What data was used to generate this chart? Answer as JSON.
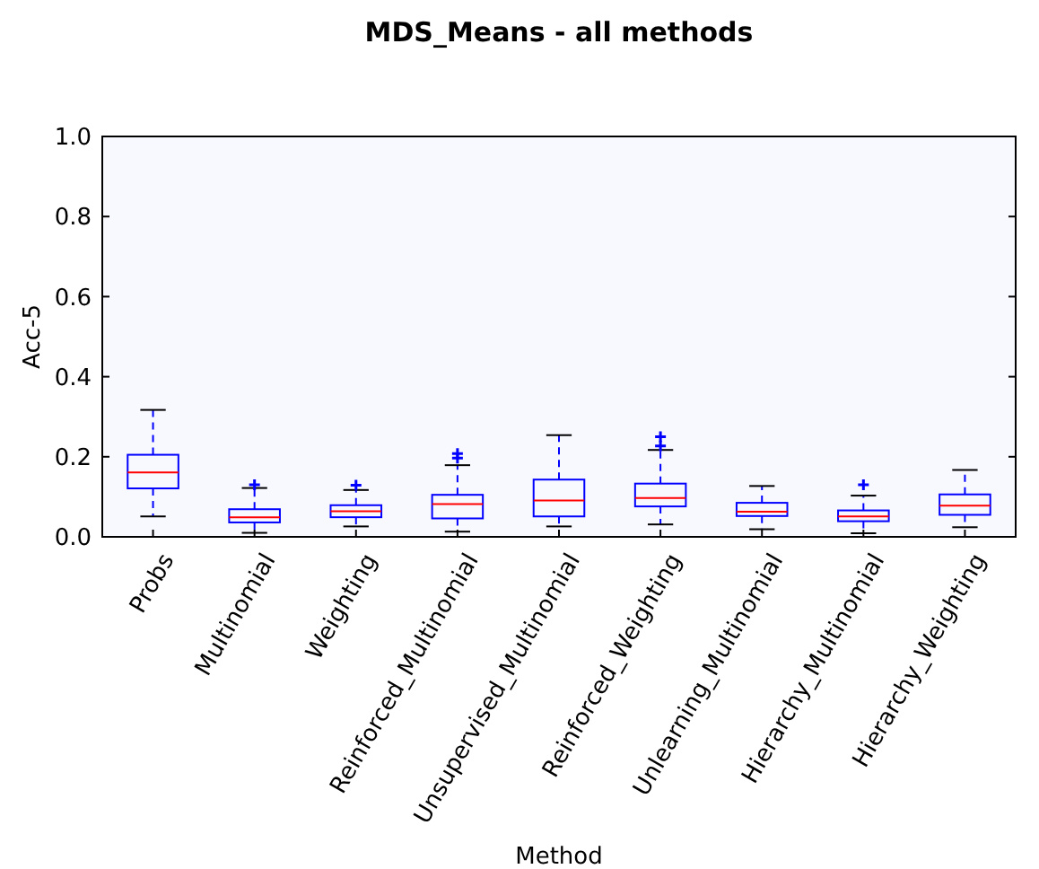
{
  "chart_data": {
    "type": "box",
    "title": "MDS_Means - all methods",
    "xlabel": "Method",
    "ylabel": "Acc-5",
    "categories": [
      "Probs",
      "Multinomial",
      "Weighting",
      "Reinforced_Multinomial",
      "Unsupervised_Multinomial",
      "Reinforced_Weighting",
      "Unlearning_Multinomial",
      "Hierarchy_Multinomial",
      "Hierarchy_Weighting"
    ],
    "boxes": [
      {
        "low": 0.051,
        "q1": 0.121,
        "median": 0.161,
        "q3": 0.205,
        "high": 0.317
      },
      {
        "low": 0.01,
        "q1": 0.036,
        "median": 0.049,
        "q3": 0.069,
        "high": 0.122,
        "outliers": [
          0.13
        ]
      },
      {
        "low": 0.026,
        "q1": 0.049,
        "median": 0.064,
        "q3": 0.079,
        "high": 0.117,
        "outliers": [
          0.129
        ]
      },
      {
        "low": 0.013,
        "q1": 0.046,
        "median": 0.082,
        "q3": 0.105,
        "high": 0.179,
        "outliers": [
          0.197,
          0.208
        ]
      },
      {
        "low": 0.026,
        "q1": 0.051,
        "median": 0.091,
        "q3": 0.143,
        "high": 0.254
      },
      {
        "low": 0.031,
        "q1": 0.076,
        "median": 0.097,
        "q3": 0.133,
        "high": 0.217,
        "outliers": [
          0.227,
          0.25
        ]
      },
      {
        "low": 0.019,
        "q1": 0.052,
        "median": 0.063,
        "q3": 0.085,
        "high": 0.127
      },
      {
        "low": 0.009,
        "q1": 0.039,
        "median": 0.051,
        "q3": 0.066,
        "high": 0.103,
        "outliers": [
          0.13
        ]
      },
      {
        "low": 0.024,
        "q1": 0.055,
        "median": 0.078,
        "q3": 0.106,
        "high": 0.167
      }
    ],
    "color": "#0000ff",
    "ylim": [
      0,
      1
    ],
    "yticks": [
      {
        "value": 0,
        "label": "0.0"
      },
      {
        "value": 0.2,
        "label": "0.2"
      },
      {
        "value": 0.4,
        "label": "0.4"
      },
      {
        "value": 0.6,
        "label": "0.6"
      },
      {
        "value": 0.8,
        "label": "0.8"
      },
      {
        "value": 1,
        "label": "1.0"
      }
    ],
    "grid": false
  }
}
